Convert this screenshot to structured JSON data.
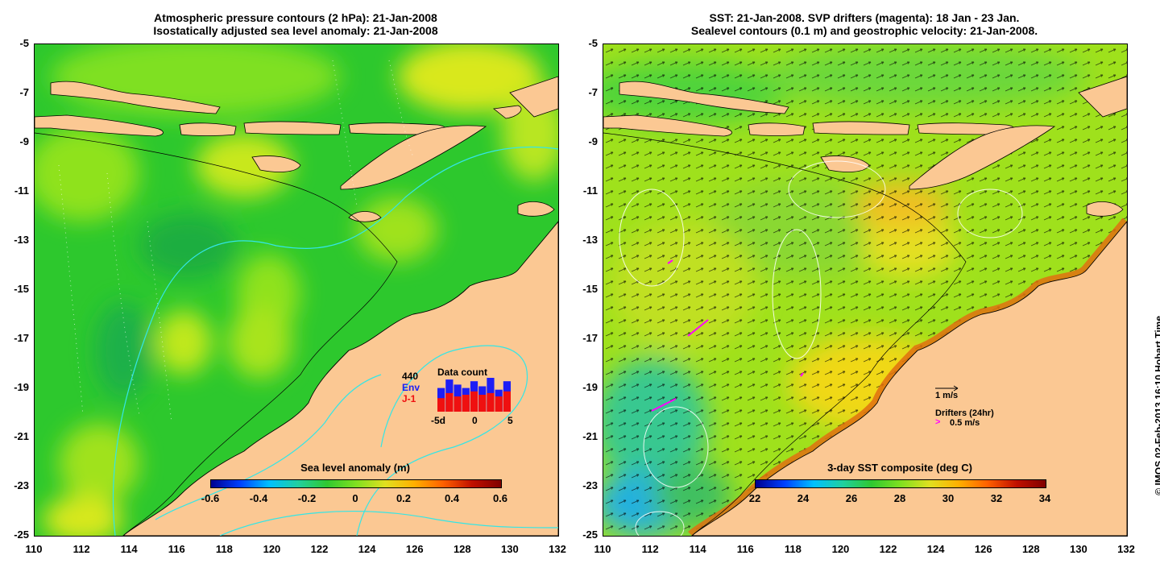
{
  "left": {
    "title_line1": "Atmospheric pressure contours (2 hPa): 21-Jan-2008",
    "title_line2": "Isostatically adjusted sea level anomaly: 21-Jan-2008",
    "colorbar": {
      "label": "Sea level anomaly (m)",
      "ticks": [
        "-0.6",
        "-0.4",
        "-0.2",
        "0",
        "0.2",
        "0.4",
        "0.6"
      ]
    },
    "inset": {
      "title": "Data count",
      "count": "440",
      "legend_env": "Env",
      "legend_j1": "J-1",
      "x_ticks": [
        "-5d",
        "0",
        "5"
      ],
      "env_color": "#1d1df5",
      "j1_color": "#ef1010",
      "bars_env": [
        0.7,
        0.95,
        0.8,
        0.7,
        0.9,
        0.75,
        1.0,
        0.65,
        0.9
      ],
      "bars_j1": [
        0.4,
        0.55,
        0.45,
        0.5,
        0.6,
        0.5,
        0.55,
        0.45,
        0.6
      ]
    }
  },
  "right": {
    "title_line1": "SST: 21-Jan-2008. SVP drifters (magenta): 18 Jan - 23 Jan.",
    "title_line2": "Sealevel contours (0.1 m) and geostrophic velocity: 21-Jan-2008.",
    "colorbar": {
      "label": "3-day SST composite (deg C)",
      "ticks": [
        "22",
        "24",
        "26",
        "28",
        "30",
        "32",
        "34"
      ]
    },
    "velocity_scale": "1 m/s",
    "drifters_label": "Drifters (24hr)",
    "drifters_scale": "0.5 m/s",
    "drifter_color": "#ff00ff"
  },
  "axes": {
    "lat_ticks": [
      "-5",
      "-7",
      "-9",
      "-11",
      "-13",
      "-15",
      "-17",
      "-19",
      "-21",
      "-23",
      "-25"
    ],
    "lon_ticks": [
      "110",
      "112",
      "114",
      "116",
      "118",
      "120",
      "122",
      "124",
      "126",
      "128",
      "130",
      "132"
    ]
  },
  "credit": "© IMOS 02-Feb-2013 16:10 Hobart Time",
  "colors": {
    "land": "#fbc893",
    "ocean_green": "#33cc33",
    "ocean_lime": "#80e020",
    "contour": "#33e6e6"
  }
}
